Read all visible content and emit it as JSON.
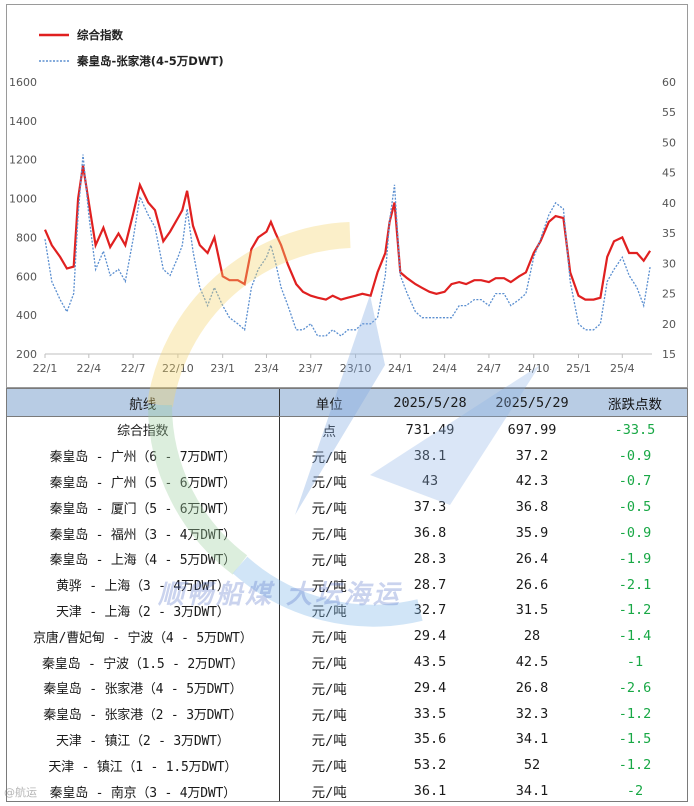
{
  "chart_data": {
    "type": "line",
    "legend": [
      {
        "name": "综合指数",
        "color": "#e02020",
        "style": "solid"
      },
      {
        "name": "秦皇岛-张家港(4-5万DWT)",
        "color": "#5b8fd0",
        "style": "dotted"
      }
    ],
    "legend_position": "top-left",
    "x_ticks": [
      "22/1",
      "22/4",
      "22/7",
      "22/10",
      "23/1",
      "23/4",
      "23/7",
      "23/10",
      "24/1",
      "24/4",
      "24/7",
      "24/10",
      "25/1",
      "25/4"
    ],
    "x_start": "2022-01",
    "x_end": "2025-06",
    "y_left": {
      "min": 200,
      "max": 1600,
      "ticks": [
        200,
        400,
        600,
        800,
        1000,
        1200,
        1400,
        1600
      ]
    },
    "y_right": {
      "min": 15,
      "max": 60,
      "ticks": [
        15,
        20,
        25,
        30,
        35,
        40,
        45,
        50,
        55,
        60
      ]
    },
    "grid": false,
    "series": [
      {
        "name": "综合指数",
        "axis": "left",
        "color": "#e02020",
        "x": [
          "2022-01-01",
          "2022-01-15",
          "2022-02-01",
          "2022-02-15",
          "2022-03-01",
          "2022-03-10",
          "2022-03-20",
          "2022-04-01",
          "2022-04-15",
          "2022-05-01",
          "2022-05-15",
          "2022-06-01",
          "2022-06-15",
          "2022-07-01",
          "2022-07-15",
          "2022-08-01",
          "2022-08-15",
          "2022-09-01",
          "2022-09-15",
          "2022-10-01",
          "2022-10-10",
          "2022-10-20",
          "2022-11-01",
          "2022-11-15",
          "2022-12-01",
          "2022-12-15",
          "2023-01-01",
          "2023-01-15",
          "2023-02-01",
          "2023-02-15",
          "2023-03-01",
          "2023-03-15",
          "2023-04-01",
          "2023-04-10",
          "2023-04-20",
          "2023-05-01",
          "2023-05-15",
          "2023-06-01",
          "2023-06-15",
          "2023-07-01",
          "2023-07-15",
          "2023-08-01",
          "2023-08-15",
          "2023-09-01",
          "2023-09-15",
          "2023-10-01",
          "2023-10-15",
          "2023-11-01",
          "2023-11-15",
          "2023-12-01",
          "2023-12-10",
          "2023-12-20",
          "2024-01-01",
          "2024-01-15",
          "2024-02-01",
          "2024-02-15",
          "2024-03-01",
          "2024-03-15",
          "2024-04-01",
          "2024-04-15",
          "2024-05-01",
          "2024-05-15",
          "2024-06-01",
          "2024-06-15",
          "2024-07-01",
          "2024-07-15",
          "2024-08-01",
          "2024-08-15",
          "2024-09-01",
          "2024-09-15",
          "2024-10-01",
          "2024-10-15",
          "2024-11-01",
          "2024-11-15",
          "2024-12-01",
          "2024-12-15",
          "2025-01-01",
          "2025-01-15",
          "2025-02-01",
          "2025-02-15",
          "2025-03-01",
          "2025-03-15",
          "2025-04-01",
          "2025-04-15",
          "2025-05-01",
          "2025-05-15",
          "2025-05-28"
        ],
        "y": [
          840,
          760,
          700,
          640,
          650,
          1000,
          1170,
          980,
          760,
          850,
          750,
          820,
          760,
          920,
          1070,
          980,
          940,
          780,
          830,
          900,
          940,
          1040,
          860,
          760,
          720,
          800,
          600,
          580,
          580,
          560,
          740,
          800,
          830,
          880,
          820,
          760,
          660,
          560,
          520,
          500,
          490,
          480,
          500,
          480,
          490,
          500,
          510,
          500,
          620,
          720,
          880,
          980,
          620,
          590,
          560,
          540,
          520,
          510,
          520,
          560,
          570,
          560,
          580,
          580,
          570,
          590,
          590,
          570,
          600,
          620,
          720,
          780,
          880,
          910,
          900,
          620,
          500,
          480,
          480,
          490,
          700,
          780,
          800,
          720,
          720,
          680,
          731
        ]
      },
      {
        "name": "秦皇岛-张家港(4-5万DWT)",
        "axis": "right",
        "color": "#5b8fd0",
        "x": [
          "2022-01-01",
          "2022-01-15",
          "2022-02-01",
          "2022-02-15",
          "2022-03-01",
          "2022-03-10",
          "2022-03-20",
          "2022-04-01",
          "2022-04-15",
          "2022-05-01",
          "2022-05-15",
          "2022-06-01",
          "2022-06-15",
          "2022-07-01",
          "2022-07-15",
          "2022-08-01",
          "2022-08-15",
          "2022-09-01",
          "2022-09-15",
          "2022-10-01",
          "2022-10-10",
          "2022-10-20",
          "2022-11-01",
          "2022-11-15",
          "2022-12-01",
          "2022-12-15",
          "2023-01-01",
          "2023-01-15",
          "2023-02-01",
          "2023-02-15",
          "2023-03-01",
          "2023-03-15",
          "2023-04-01",
          "2023-04-10",
          "2023-04-20",
          "2023-05-01",
          "2023-05-15",
          "2023-06-01",
          "2023-06-15",
          "2023-07-01",
          "2023-07-15",
          "2023-08-01",
          "2023-08-15",
          "2023-09-01",
          "2023-09-15",
          "2023-10-01",
          "2023-10-15",
          "2023-11-01",
          "2023-11-15",
          "2023-12-01",
          "2023-12-10",
          "2023-12-20",
          "2024-01-01",
          "2024-01-15",
          "2024-02-01",
          "2024-02-15",
          "2024-03-01",
          "2024-03-15",
          "2024-04-01",
          "2024-04-15",
          "2024-05-01",
          "2024-05-15",
          "2024-06-01",
          "2024-06-15",
          "2024-07-01",
          "2024-07-15",
          "2024-08-01",
          "2024-08-15",
          "2024-09-01",
          "2024-09-15",
          "2024-10-01",
          "2024-10-15",
          "2024-11-01",
          "2024-11-15",
          "2024-12-01",
          "2024-12-15",
          "2025-01-01",
          "2025-01-15",
          "2025-02-01",
          "2025-02-15",
          "2025-03-01",
          "2025-03-15",
          "2025-04-01",
          "2025-04-15",
          "2025-05-01",
          "2025-05-15",
          "2025-05-28"
        ],
        "y": [
          34,
          27,
          24,
          22,
          25,
          38,
          48,
          38,
          29,
          32,
          28,
          29,
          27,
          34,
          41,
          38,
          36,
          29,
          28,
          31,
          33,
          39,
          32,
          26,
          23,
          26,
          23,
          21,
          20,
          19,
          26,
          29,
          31,
          33,
          30,
          26,
          23,
          19,
          19,
          20,
          18,
          18,
          19,
          18,
          19,
          19,
          20,
          20,
          21,
          28,
          37,
          43,
          28,
          25,
          22,
          21,
          21,
          21,
          21,
          21,
          23,
          23,
          24,
          24,
          23,
          25,
          25,
          23,
          24,
          25,
          31,
          34,
          38,
          40,
          39,
          27,
          20,
          19,
          19,
          20,
          27,
          29,
          31,
          28,
          26,
          23,
          29.4
        ]
      }
    ]
  },
  "table": {
    "headers": [
      "航线",
      "单位",
      "2025/5/28",
      "2025/5/29",
      "涨跌点数"
    ],
    "rows": [
      [
        "综合指数",
        "点",
        "731.49",
        "697.99",
        "-33.5"
      ],
      [
        "秦皇岛 - 广州（6 - 7万DWT）",
        "元/吨",
        "38.1",
        "37.2",
        "-0.9"
      ],
      [
        "秦皇岛 - 广州（5 - 6万DWT）",
        "元/吨",
        "43",
        "42.3",
        "-0.7"
      ],
      [
        "秦皇岛 - 厦门（5 - 6万DWT）",
        "元/吨",
        "37.3",
        "36.8",
        "-0.5"
      ],
      [
        "秦皇岛 - 福州（3 - 4万DWT）",
        "元/吨",
        "36.8",
        "35.9",
        "-0.9"
      ],
      [
        "秦皇岛 - 上海（4 - 5万DWT）",
        "元/吨",
        "28.3",
        "26.4",
        "-1.9"
      ],
      [
        "黄骅 - 上海（3 - 4万DWT）",
        "元/吨",
        "28.7",
        "26.6",
        "-2.1"
      ],
      [
        "天津 - 上海（2 - 3万DWT）",
        "元/吨",
        "32.7",
        "31.5",
        "-1.2"
      ],
      [
        "京唐/曹妃甸 - 宁波（4 - 5万DWT）",
        "元/吨",
        "29.4",
        "28",
        "-1.4"
      ],
      [
        "秦皇岛 - 宁波（1.5 - 2万DWT）",
        "元/吨",
        "43.5",
        "42.5",
        "-1"
      ],
      [
        "秦皇岛 - 张家港（4 - 5万DWT）",
        "元/吨",
        "29.4",
        "26.8",
        "-2.6"
      ],
      [
        "秦皇岛 - 张家港（2 - 3万DWT）",
        "元/吨",
        "33.5",
        "32.3",
        "-1.2"
      ],
      [
        "天津 - 镇江（2 - 3万DWT）",
        "元/吨",
        "35.6",
        "34.1",
        "-1.5"
      ],
      [
        "天津 - 镇江（1 - 1.5万DWT）",
        "元/吨",
        "53.2",
        "52",
        "-1.2"
      ],
      [
        "秦皇岛 - 南京（3 - 4万DWT）",
        "元/吨",
        "36.1",
        "34.1",
        "-2"
      ]
    ]
  },
  "watermark": {
    "text": "顺畅船煤  大坛海运",
    "corner": "@航运"
  },
  "colors": {
    "header_bg": "#b8cce4",
    "change_green": "#18a845"
  }
}
